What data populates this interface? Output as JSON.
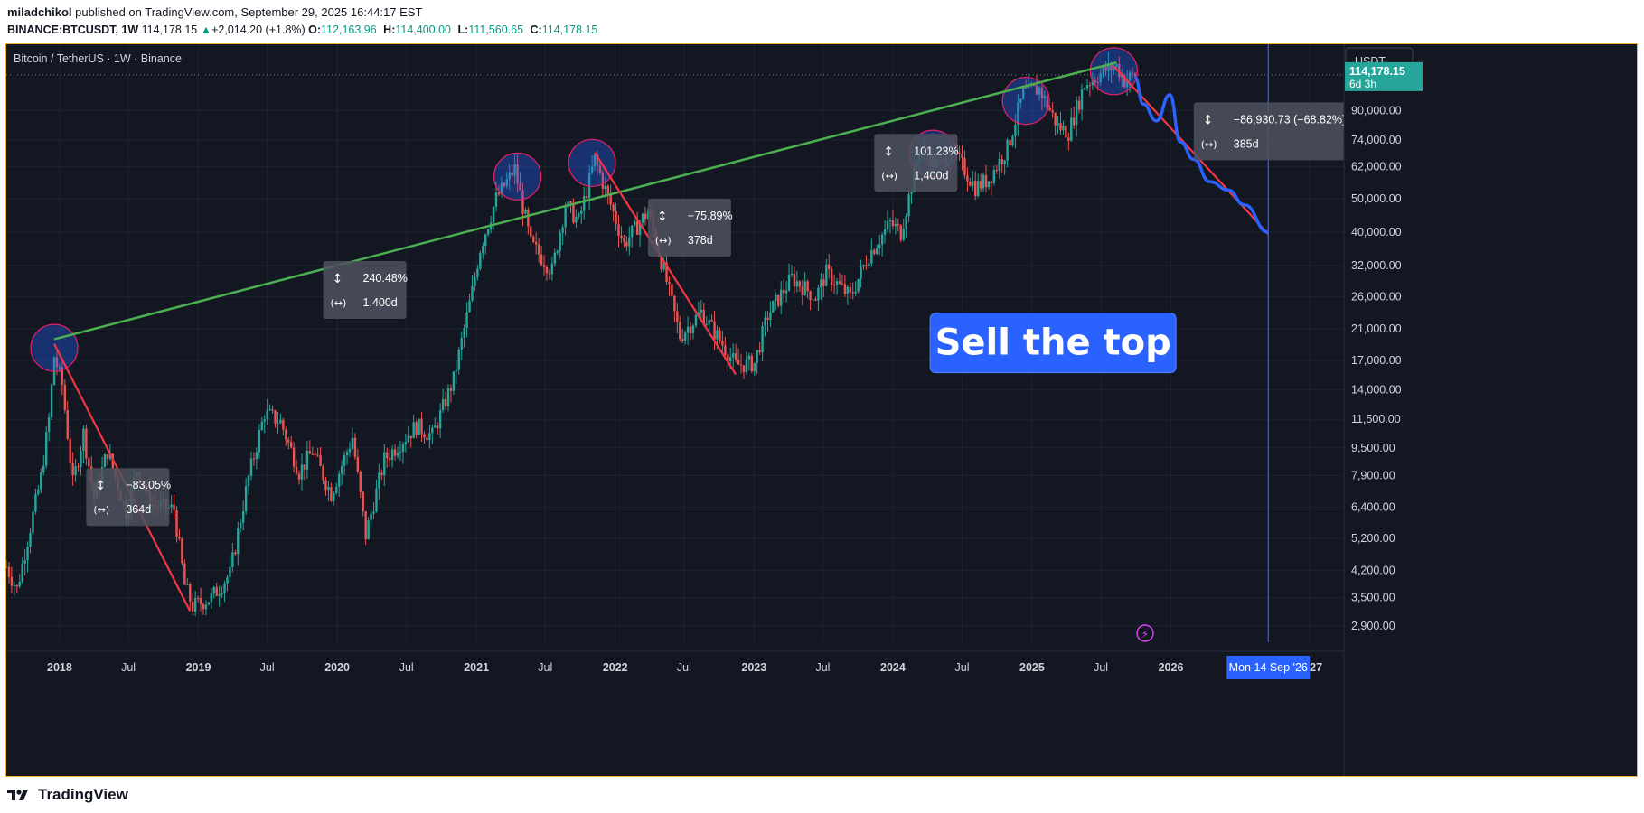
{
  "header": {
    "author": "miladchikol",
    "published_text": "published on TradingView.com, September 29, 2025 16:44:17 EST"
  },
  "symbol_bar": {
    "symbol": "BINANCE:BTCUSDT, 1W",
    "last": "114,178.15",
    "change": "+2,014.20 (+1.8%)",
    "o_label": "O:",
    "o": "112,163.96",
    "h_label": "H:",
    "h": "114,400.00",
    "l_label": "L:",
    "l": "111,560.65",
    "c_label": "C:",
    "c": "114,178.15"
  },
  "footer": {
    "brand": "TradingView"
  },
  "colors": {
    "background": "#131722",
    "bull": "#26a69a",
    "bear": "#ef5350",
    "trend_line": "#4caf50",
    "down_line": "#f23645",
    "projection": "#2962ff",
    "badge": "#2962ff",
    "accent": "#f0b323",
    "time_line": "#2962ff"
  },
  "chart_data": {
    "type": "candlestick",
    "title": "Bitcoin / TetherUS · 1W · Binance",
    "currency": "USDT",
    "y_scale": "log",
    "ylim": [
      2600,
      140000
    ],
    "y_ticks": [
      {
        "v": 90000,
        "label": "90,000.00"
      },
      {
        "v": 74000,
        "label": "74,000.00"
      },
      {
        "v": 62000,
        "label": "62,000.00"
      },
      {
        "v": 50000,
        "label": "50,000.00"
      },
      {
        "v": 40000,
        "label": "40,000.00"
      },
      {
        "v": 32000,
        "label": "32,000.00"
      },
      {
        "v": 26000,
        "label": "26,000.00"
      },
      {
        "v": 21000,
        "label": "21,000.00"
      },
      {
        "v": 17000,
        "label": "17,000.00"
      },
      {
        "v": 14000,
        "label": "14,000.00"
      },
      {
        "v": 11500,
        "label": "11,500.00"
      },
      {
        "v": 9500,
        "label": "9,500.00"
      },
      {
        "v": 7900,
        "label": "7,900.00"
      },
      {
        "v": 6400,
        "label": "6,400.00"
      },
      {
        "v": 5200,
        "label": "5,200.00"
      },
      {
        "v": 4200,
        "label": "4,200.00"
      },
      {
        "v": 3500,
        "label": "3,500.00"
      },
      {
        "v": 2900,
        "label": "2,900.00"
      }
    ],
    "x_range": [
      "2017-08-14",
      "2027-04-01"
    ],
    "x_ticks": [
      {
        "date": "2018-01-01",
        "label": "2018",
        "major": true
      },
      {
        "date": "2018-07-01",
        "label": "Jul",
        "major": false
      },
      {
        "date": "2019-01-01",
        "label": "2019",
        "major": true
      },
      {
        "date": "2019-07-01",
        "label": "Jul",
        "major": false
      },
      {
        "date": "2020-01-01",
        "label": "2020",
        "major": true
      },
      {
        "date": "2020-07-01",
        "label": "Jul",
        "major": false
      },
      {
        "date": "2021-01-01",
        "label": "2021",
        "major": true
      },
      {
        "date": "2021-07-01",
        "label": "Jul",
        "major": false
      },
      {
        "date": "2022-01-01",
        "label": "2022",
        "major": true
      },
      {
        "date": "2022-07-01",
        "label": "Jul",
        "major": false
      },
      {
        "date": "2023-01-01",
        "label": "2023",
        "major": true
      },
      {
        "date": "2023-07-01",
        "label": "Jul",
        "major": false
      },
      {
        "date": "2024-01-01",
        "label": "2024",
        "major": true
      },
      {
        "date": "2024-07-01",
        "label": "Jul",
        "major": false
      },
      {
        "date": "2025-01-01",
        "label": "2025",
        "major": true
      },
      {
        "date": "2025-07-01",
        "label": "Jul",
        "major": false
      },
      {
        "date": "2026-01-01",
        "label": "2026",
        "major": true
      },
      {
        "date": "2027-01-01",
        "label": "2027",
        "major": true
      }
    ],
    "last_price": {
      "value": 114178.15,
      "label": "114,178.15",
      "countdown": "6d 3h"
    },
    "price_anchors": [
      [
        "2017-08-14",
        4300
      ],
      [
        "2017-09-11",
        3700
      ],
      [
        "2017-10-16",
        5600
      ],
      [
        "2017-11-13",
        7800
      ],
      [
        "2017-12-04",
        11500
      ],
      [
        "2017-12-18",
        17500
      ],
      [
        "2018-01-08",
        14500
      ],
      [
        "2018-02-05",
        7500
      ],
      [
        "2018-03-05",
        10500
      ],
      [
        "2018-04-02",
        6800
      ],
      [
        "2018-05-07",
        9300
      ],
      [
        "2018-06-25",
        6200
      ],
      [
        "2018-07-23",
        8200
      ],
      [
        "2018-09-03",
        6500
      ],
      [
        "2018-10-29",
        6300
      ],
      [
        "2018-11-26",
        3800
      ],
      [
        "2018-12-17",
        3300
      ],
      [
        "2019-02-04",
        3500
      ],
      [
        "2019-03-25",
        4100
      ],
      [
        "2019-05-13",
        7800
      ],
      [
        "2019-06-24",
        12000
      ],
      [
        "2019-08-05",
        11300
      ],
      [
        "2019-09-23",
        8100
      ],
      [
        "2019-10-28",
        9300
      ],
      [
        "2019-12-16",
        7000
      ],
      [
        "2020-02-10",
        10200
      ],
      [
        "2020-03-16",
        5300
      ],
      [
        "2020-05-04",
        8800
      ],
      [
        "2020-07-27",
        11000
      ],
      [
        "2020-09-07",
        10300
      ],
      [
        "2020-11-02",
        15000
      ],
      [
        "2020-12-21",
        27000
      ],
      [
        "2021-01-11",
        36000
      ],
      [
        "2021-02-22",
        50000
      ],
      [
        "2021-04-12",
        61000
      ],
      [
        "2021-05-24",
        37000
      ],
      [
        "2021-07-19",
        31000
      ],
      [
        "2021-08-23",
        48000
      ],
      [
        "2021-09-27",
        43000
      ],
      [
        "2021-11-08",
        65000
      ],
      [
        "2021-12-20",
        48000
      ],
      [
        "2022-01-24",
        37000
      ],
      [
        "2022-03-28",
        46000
      ],
      [
        "2022-05-09",
        31000
      ],
      [
        "2022-06-20",
        20000
      ],
      [
        "2022-08-15",
        23500
      ],
      [
        "2022-10-03",
        19500
      ],
      [
        "2022-11-14",
        16500
      ],
      [
        "2023-01-02",
        16700
      ],
      [
        "2023-02-06",
        23000
      ],
      [
        "2023-04-10",
        29500
      ],
      [
        "2023-06-12",
        26000
      ],
      [
        "2023-07-10",
        30500
      ],
      [
        "2023-09-11",
        26000
      ],
      [
        "2023-10-30",
        34500
      ],
      [
        "2023-12-25",
        42500
      ],
      [
        "2024-01-22",
        40000
      ],
      [
        "2024-03-11",
        69000
      ],
      [
        "2024-05-06",
        62000
      ],
      [
        "2024-06-03",
        70000
      ],
      [
        "2024-08-05",
        54000
      ],
      [
        "2024-09-09",
        57000
      ],
      [
        "2024-10-28",
        70000
      ],
      [
        "2024-12-09",
        101000
      ],
      [
        "2025-01-20",
        104000
      ],
      [
        "2025-03-10",
        81000
      ],
      [
        "2025-04-07",
        78000
      ],
      [
        "2025-05-19",
        107000
      ],
      [
        "2025-07-14",
        118000
      ],
      [
        "2025-08-11",
        121000
      ],
      [
        "2025-09-01",
        110000
      ],
      [
        "2025-09-29",
        114178
      ]
    ],
    "trend_line": {
      "from": [
        "2017-12-18",
        19600
      ],
      "to": [
        "2025-08-11",
        124000
      ]
    },
    "down_lines": [
      {
        "from": [
          "2017-12-18",
          19000
        ],
        "to": [
          "2018-12-10",
          3200
        ]
      },
      {
        "from": [
          "2021-11-08",
          68000
        ],
        "to": [
          "2022-11-14",
          15500
        ]
      },
      {
        "from": [
          "2025-08-04",
          121000
        ],
        "to": [
          "2026-09-14",
          39500
        ]
      }
    ],
    "projection_path": [
      [
        "2025-09-29",
        112000
      ],
      [
        "2025-10-20",
        94000
      ],
      [
        "2025-11-24",
        84000
      ],
      [
        "2025-12-29",
        100000
      ],
      [
        "2026-01-26",
        73000
      ],
      [
        "2026-03-02",
        65000
      ],
      [
        "2026-04-13",
        56000
      ],
      [
        "2026-06-01",
        53000
      ],
      [
        "2026-07-13",
        48000
      ],
      [
        "2026-09-14",
        40000
      ]
    ],
    "circles": [
      [
        "2017-12-18",
        18500
      ],
      [
        "2021-04-19",
        58000
      ],
      [
        "2021-11-01",
        63500
      ],
      [
        "2024-04-15",
        67500
      ],
      [
        "2024-12-16",
        96000
      ],
      [
        "2025-08-04",
        117000
      ]
    ],
    "measurements": [
      {
        "pct": "−83.05%",
        "bars": "364d",
        "anchor": [
          "2018-03-12",
          8300
        ]
      },
      {
        "pct": "240.48%",
        "bars": "1,400d",
        "anchor": [
          "2019-11-25",
          33000
        ]
      },
      {
        "pct": "−75.89%",
        "bars": "378d",
        "anchor": [
          "2022-03-28",
          50000
        ]
      },
      {
        "pct": "101.23%",
        "bars": "1,400d",
        "anchor": [
          "2023-11-13",
          77000
        ]
      },
      {
        "pct": "−86,930.73 (−68.82%)",
        "bars": "385d",
        "anchor": [
          "2026-03-02",
          95000
        ]
      }
    ],
    "annotation_text": "Sell the top",
    "annotation_anchor": [
      "2024-04-08",
      19000
    ],
    "time_marker": {
      "date": "2026-09-14",
      "label": "Mon 14 Sep '26"
    }
  }
}
